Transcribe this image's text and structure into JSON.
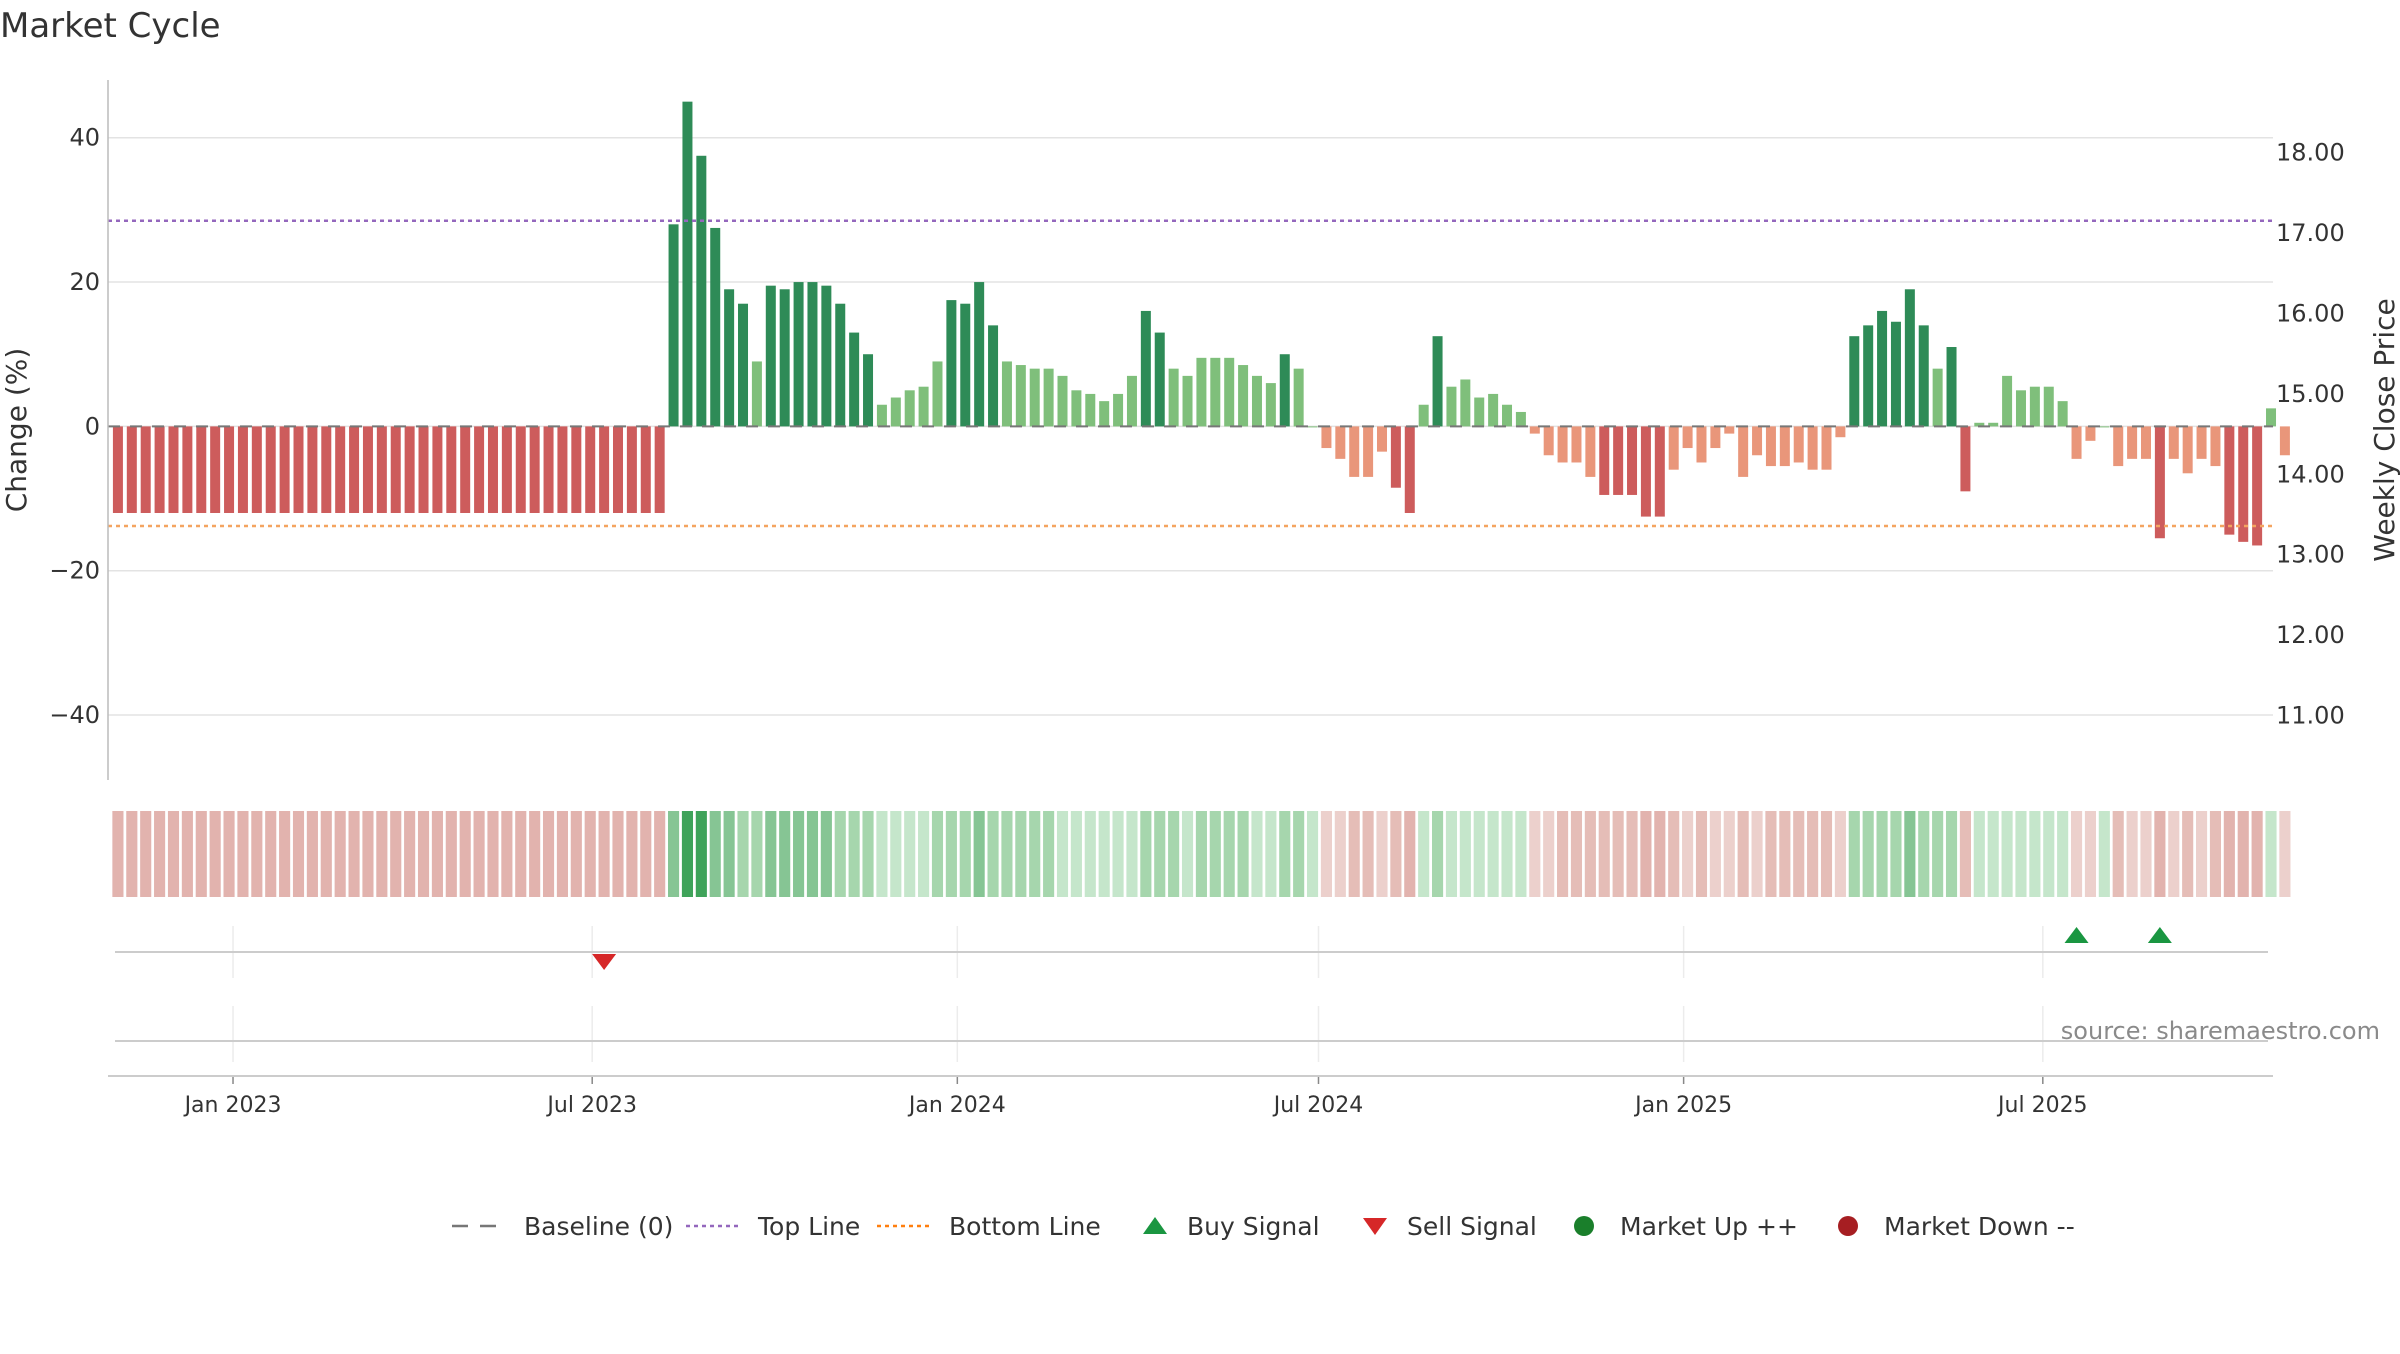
{
  "chart_data": {
    "type": "bar",
    "title": "Market Cycle",
    "ylabel": "Change (%)",
    "y2label": "Weekly Close Price",
    "ylim": [
      -49,
      48
    ],
    "y2lim": [
      10.2,
      18.9
    ],
    "yticks": [
      40,
      20,
      0,
      -20,
      -40
    ],
    "ytick_labels": [
      "40",
      "20",
      "0",
      "−20",
      "−40"
    ],
    "y2ticks": [
      18,
      17,
      16,
      15,
      14,
      13,
      12,
      11
    ],
    "y2tick_labels": [
      "18.00",
      "17.00",
      "16.00",
      "15.00",
      "14.00",
      "13.00",
      "12.00",
      "11.00"
    ],
    "xlim": [
      "2022-10-30",
      "2025-10-25"
    ],
    "xticks": [
      "2023-01-01",
      "2023-07-01",
      "2024-01-01",
      "2024-07-01",
      "2025-01-01",
      "2025-07-01"
    ],
    "xtick_labels": [
      "Jan 2023",
      "Jul 2023",
      "Jan 2024",
      "Jul 2024",
      "Jan 2025",
      "Jul 2025"
    ],
    "first_week": "2022-11-04",
    "top_line": 28.5,
    "bottom_line": -13.8,
    "values": [
      -12,
      -12,
      -12,
      -12,
      -12,
      -12,
      -12,
      -12,
      -12,
      -12,
      -12,
      -12,
      -12,
      -12,
      -12,
      -12,
      -12,
      -12,
      -12,
      -12,
      -12,
      -12,
      -12,
      -12,
      -12,
      -12,
      -12,
      -12,
      -12,
      -12,
      -12,
      -12,
      -12,
      -12,
      -12,
      -12,
      -12,
      -12,
      -12,
      -12,
      28,
      45,
      37.5,
      27.5,
      19,
      17,
      9,
      19.5,
      19,
      20,
      20,
      19.5,
      17,
      13,
      10,
      3,
      4,
      5,
      5.5,
      9,
      17.5,
      17,
      20,
      14,
      9,
      8.5,
      8,
      8,
      7,
      5,
      4.5,
      3.5,
      4.5,
      7,
      16,
      13,
      8,
      7,
      9.5,
      9.5,
      9.5,
      8.5,
      7,
      6,
      10,
      8,
      0,
      -3,
      -4.5,
      -7,
      -7,
      -3.5,
      -8.5,
      -12,
      3,
      12.5,
      5.5,
      6.5,
      4,
      4.5,
      3,
      2,
      -1,
      -4,
      -5,
      -5,
      -7,
      -9.5,
      -9.5,
      -9.5,
      -12.5,
      -12.5,
      -6,
      -3,
      -5,
      -3,
      -1,
      -7,
      -4,
      -5.5,
      -5.5,
      -5,
      -6,
      -6,
      -1.5,
      12.5,
      14,
      16,
      14.5,
      19,
      14,
      8,
      11,
      -9,
      0.5,
      0.5,
      7,
      5,
      5.5,
      5.5,
      3.5,
      -4.5,
      -2,
      0,
      -5.5,
      -4.5,
      -4.5,
      -15.5,
      -4.5,
      -6.5,
      -4.5,
      -5.5,
      -15,
      -16,
      -16.5,
      2.5,
      -4
    ],
    "sell_signals": [
      "2023-07-07"
    ],
    "buy_signals": [
      "2025-07-18",
      "2025-08-29"
    ],
    "legend": {
      "position": "bottom-center",
      "entries": [
        {
          "label": "Baseline (0)",
          "marker": "dashed-line",
          "color": "#777777"
        },
        {
          "label": "Top Line",
          "marker": "dotted-line",
          "color": "#9467bd"
        },
        {
          "label": "Bottom Line",
          "marker": "dotted-line",
          "color": "#ff7f0e"
        },
        {
          "label": "Buy Signal",
          "marker": "triangle-up",
          "color": "#1a9641"
        },
        {
          "label": "Sell Signal",
          "marker": "triangle-down",
          "color": "#d62728"
        },
        {
          "label": "Market Up ++",
          "marker": "circle",
          "color": "#1a7f2b"
        },
        {
          "label": "Market Down --",
          "marker": "circle",
          "color": "#a61e22"
        }
      ]
    },
    "source_note": "source: sharemaestro.com",
    "grid": true
  },
  "colors": {
    "up_strong": "#2e8b57",
    "up_light": "#7fbf7b",
    "down_strong": "#cd5c5c",
    "down_light": "#e9967a",
    "top_line": "#9467bd",
    "bottom_line": "#f4a460",
    "buy": "#1a9641",
    "sell": "#d62728"
  }
}
